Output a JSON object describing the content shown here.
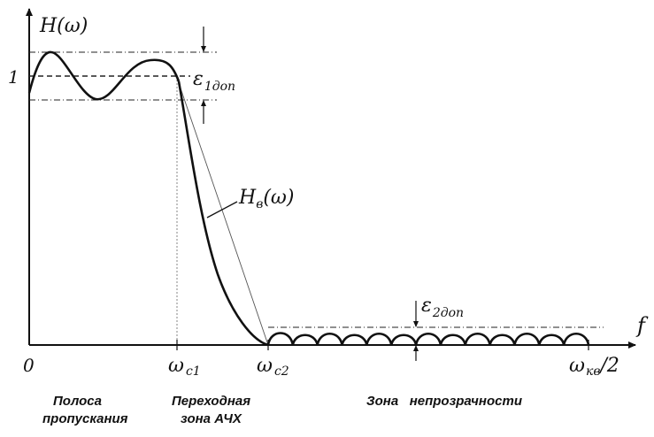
{
  "axes": {
    "y_label": "H(ω)",
    "y_tick_one": "1",
    "origin": "0",
    "x_label": "f",
    "x_tick_wc1": "ω",
    "x_tick_wc1_sub": "c1",
    "x_tick_wc2": "ω",
    "x_tick_wc2_sub": "c2",
    "x_tick_wkv": "ω",
    "x_tick_wkv_sub": "кв",
    "x_tick_wkv_suffix": "/2"
  },
  "annotations": {
    "eps1": "ε",
    "eps1_sub": "1доп",
    "eps2": "ε",
    "eps2_sub": "2доп",
    "hv_curve": "H",
    "hv_curve_sub": "в",
    "hv_curve_suffix": "(ω)"
  },
  "zones": {
    "passband_line1": "Полоса",
    "passband_line2": "пропускания",
    "transition_line1": "Переходная",
    "transition_line2": "зона АЧХ",
    "stopband": "Зона   непрозрачности"
  }
}
